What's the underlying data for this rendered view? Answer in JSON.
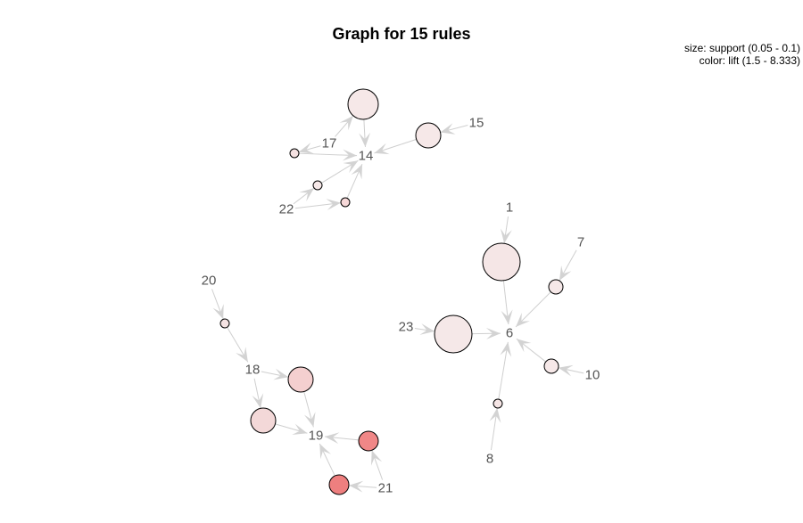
{
  "title": "Graph for 15 rules",
  "legend": {
    "size_line": "size: support (0.05 - 0.1)",
    "color_line": "color: lift (1.5 - 8.333)"
  },
  "items": [
    {
      "id": "1",
      "label": "1"
    },
    {
      "id": "6",
      "label": "6"
    },
    {
      "id": "7",
      "label": "7"
    },
    {
      "id": "8",
      "label": "8"
    },
    {
      "id": "10",
      "label": "10"
    },
    {
      "id": "14",
      "label": "14"
    },
    {
      "id": "15",
      "label": "15"
    },
    {
      "id": "17",
      "label": "17"
    },
    {
      "id": "18",
      "label": "18"
    },
    {
      "id": "19",
      "label": "19"
    },
    {
      "id": "20",
      "label": "20"
    },
    {
      "id": "21",
      "label": "21"
    },
    {
      "id": "22",
      "label": "22"
    },
    {
      "id": "23",
      "label": "23"
    }
  ],
  "rules": [
    {
      "id": "r1",
      "lhs": [
        "1"
      ],
      "rhs": "6",
      "color": "#f5e6e6"
    },
    {
      "id": "r2",
      "lhs": [
        "7"
      ],
      "rhs": "6",
      "color": "#f6e8e8"
    },
    {
      "id": "r3",
      "lhs": [
        "23"
      ],
      "rhs": "6",
      "color": "#f5e8e8"
    },
    {
      "id": "r4",
      "lhs": [
        "10"
      ],
      "rhs": "6",
      "color": "#f6e8e8"
    },
    {
      "id": "r5",
      "lhs": [
        "8"
      ],
      "rhs": "6",
      "color": "#f5e5e5"
    },
    {
      "id": "r6",
      "lhs": [
        "15"
      ],
      "rhs": "14",
      "color": "#f6e8e8"
    },
    {
      "id": "r7",
      "lhs": [
        "17"
      ],
      "rhs": "14",
      "color": "#f6e8e8"
    },
    {
      "id": "r8",
      "lhs": [
        "17"
      ],
      "rhs": "14",
      "color": "#f5e2e2"
    },
    {
      "id": "r9",
      "lhs": [
        "22"
      ],
      "rhs": "14",
      "color": "#f6e8e8"
    },
    {
      "id": "r10",
      "lhs": [
        "22"
      ],
      "rhs": "14",
      "color": "#f6d8d8"
    },
    {
      "id": "r11",
      "lhs": [
        "20"
      ],
      "rhs": "18",
      "color": "#f5e3e3"
    },
    {
      "id": "r12",
      "lhs": [
        "18"
      ],
      "rhs": "19",
      "color": "#f4cfcf"
    },
    {
      "id": "r13",
      "lhs": [
        "18"
      ],
      "rhs": "19",
      "color": "#f3d8d8"
    },
    {
      "id": "r14",
      "lhs": [
        "21"
      ],
      "rhs": "19",
      "color": "#f08787"
    },
    {
      "id": "r15",
      "lhs": [
        "21"
      ],
      "rhs": "19",
      "color": "#ee7f7f"
    }
  ]
}
